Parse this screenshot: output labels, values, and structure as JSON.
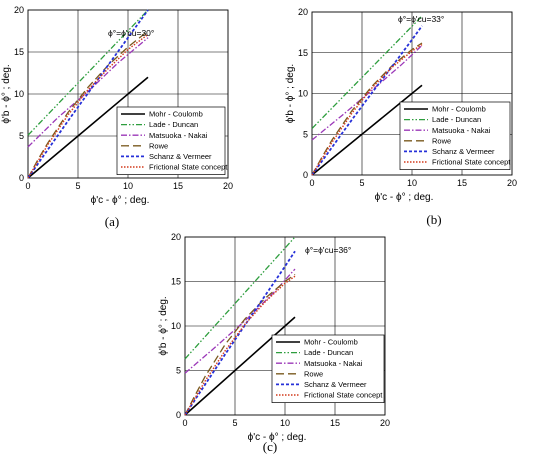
{
  "figure": {
    "colors": {
      "mohr_coulomb": "#000000",
      "lade_duncan": "#2e9e3e",
      "matsuoka_nakai": "#9b37b8",
      "rowe": "#7a5a1e",
      "schanz_vermeer": "#2630d8",
      "frictional_state": "#d23a1c"
    }
  },
  "chart_data": [
    {
      "panel_label": "(a)",
      "type": "line",
      "annotation": "ϕ°=ϕ'cu=30°",
      "xlabel": "ϕ'c - ϕ° ; deg.",
      "ylabel": "ϕ'b - ϕ° ; deg.",
      "xlim": [
        0,
        20
      ],
      "ylim": [
        0,
        20
      ],
      "xticks": [
        "0",
        "5",
        "10",
        "15",
        "20"
      ],
      "yticks": [
        "0",
        "5",
        "10",
        "15",
        "20"
      ],
      "grid": true,
      "legend_position": "lower-right",
      "series": [
        {
          "name": "Mohr - Coulomb",
          "key": "mohr_coulomb",
          "x": [
            0,
            12
          ],
          "y": [
            0,
            12
          ]
        },
        {
          "name": "Lade - Duncan",
          "key": "lade_duncan",
          "x": [
            0,
            12
          ],
          "y": [
            5.1,
            20
          ]
        },
        {
          "name": "Matsuoka - Nakai",
          "key": "matsuoka_nakai",
          "x": [
            0,
            3,
            6,
            9,
            12
          ],
          "y": [
            3.7,
            7.2,
            10.3,
            13.7,
            16.7
          ]
        },
        {
          "name": "Rowe",
          "key": "rowe",
          "x": [
            0,
            1,
            2,
            4,
            6,
            8,
            10,
            12
          ],
          "y": [
            0,
            2.2,
            4.2,
            7.8,
            10.8,
            13.4,
            15.6,
            17.5
          ]
        },
        {
          "name": "Schanz & Vermeer",
          "key": "schanz_vermeer",
          "x": [
            0,
            2,
            4,
            6,
            8,
            10,
            12
          ],
          "y": [
            0,
            3.4,
            6.8,
            10.1,
            13.4,
            16.7,
            20.0
          ]
        },
        {
          "name": "Frictional State concept",
          "key": "frictional_state",
          "x": [
            0,
            1,
            2,
            4,
            6,
            8,
            10,
            12
          ],
          "y": [
            0,
            2.0,
            4.0,
            7.5,
            10.5,
            13.0,
            15.3,
            17.1
          ]
        }
      ]
    },
    {
      "panel_label": "(b)",
      "type": "line",
      "annotation": "ϕ°=ϕ'cu=33°",
      "xlabel": "ϕ'c - ϕ° ; deg.",
      "ylabel": "ϕ'b - ϕ° ; deg.",
      "xlim": [
        0,
        20
      ],
      "ylim": [
        0,
        20
      ],
      "xticks": [
        "0",
        "5",
        "10",
        "15",
        "20"
      ],
      "yticks": [
        "0",
        "5",
        "10",
        "15",
        "20"
      ],
      "grid": true,
      "legend_position": "lower-right",
      "series": [
        {
          "name": "Mohr - Coulomb",
          "key": "mohr_coulomb",
          "x": [
            0,
            11
          ],
          "y": [
            0,
            11
          ]
        },
        {
          "name": "Lade - Duncan",
          "key": "lade_duncan",
          "x": [
            0,
            11
          ],
          "y": [
            5.7,
            19.5
          ]
        },
        {
          "name": "Matsuoka - Nakai",
          "key": "matsuoka_nakai",
          "x": [
            0,
            3,
            6,
            9,
            11
          ],
          "y": [
            4.3,
            7.3,
            10.4,
            13.6,
            15.9
          ]
        },
        {
          "name": "Rowe",
          "key": "rowe",
          "x": [
            0,
            1,
            2,
            4,
            6,
            8,
            10,
            11
          ],
          "y": [
            0,
            2.2,
            4.3,
            7.9,
            10.9,
            13.4,
            15.4,
            16.2
          ]
        },
        {
          "name": "Schanz & Vermeer",
          "key": "schanz_vermeer",
          "x": [
            0,
            2,
            4,
            6,
            8,
            10,
            11
          ],
          "y": [
            0,
            3.4,
            6.8,
            10.1,
            13.3,
            16.6,
            18.3
          ]
        },
        {
          "name": "Frictional State concept",
          "key": "frictional_state",
          "x": [
            0,
            1,
            2,
            4,
            6,
            8,
            10,
            11
          ],
          "y": [
            0,
            2.0,
            4.0,
            7.6,
            10.7,
            13.2,
            15.2,
            16.0
          ]
        }
      ]
    },
    {
      "panel_label": "(c)",
      "type": "line",
      "annotation": "ϕ°=ϕ'cu=36°",
      "xlabel": "ϕ'c - ϕ° ; deg.",
      "ylabel": "ϕ'b - ϕ° ; deg.",
      "xlim": [
        0,
        20
      ],
      "ylim": [
        0,
        20
      ],
      "xticks": [
        "0",
        "5",
        "10",
        "15",
        "20"
      ],
      "yticks": [
        "0",
        "5",
        "10",
        "15",
        "20"
      ],
      "grid": true,
      "legend_position": "lower-right",
      "series": [
        {
          "name": "Mohr - Coulomb",
          "key": "mohr_coulomb",
          "x": [
            0,
            11
          ],
          "y": [
            0,
            11
          ]
        },
        {
          "name": "Lade - Duncan",
          "key": "lade_duncan",
          "x": [
            0,
            11
          ],
          "y": [
            6.3,
            20
          ]
        },
        {
          "name": "Matsuoka - Nakai",
          "key": "matsuoka_nakai",
          "x": [
            0,
            3,
            6,
            9,
            11
          ],
          "y": [
            4.7,
            7.6,
            10.6,
            13.9,
            16.4
          ]
        },
        {
          "name": "Rowe",
          "key": "rowe",
          "x": [
            0,
            1,
            2,
            4,
            6,
            8,
            10,
            11
          ],
          "y": [
            0,
            2.2,
            4.3,
            7.9,
            10.8,
            13.1,
            15.0,
            15.8
          ]
        },
        {
          "name": "Schanz & Vermeer",
          "key": "schanz_vermeer",
          "x": [
            0,
            2,
            4,
            6,
            8,
            10,
            11
          ],
          "y": [
            0,
            3.4,
            6.8,
            10.1,
            13.4,
            16.7,
            18.4
          ]
        },
        {
          "name": "Frictional State concept",
          "key": "frictional_state",
          "x": [
            0,
            1,
            2,
            4,
            6,
            8,
            10,
            11
          ],
          "y": [
            0,
            1.9,
            3.8,
            7.2,
            10.2,
            12.7,
            14.8,
            15.6
          ]
        }
      ]
    }
  ]
}
